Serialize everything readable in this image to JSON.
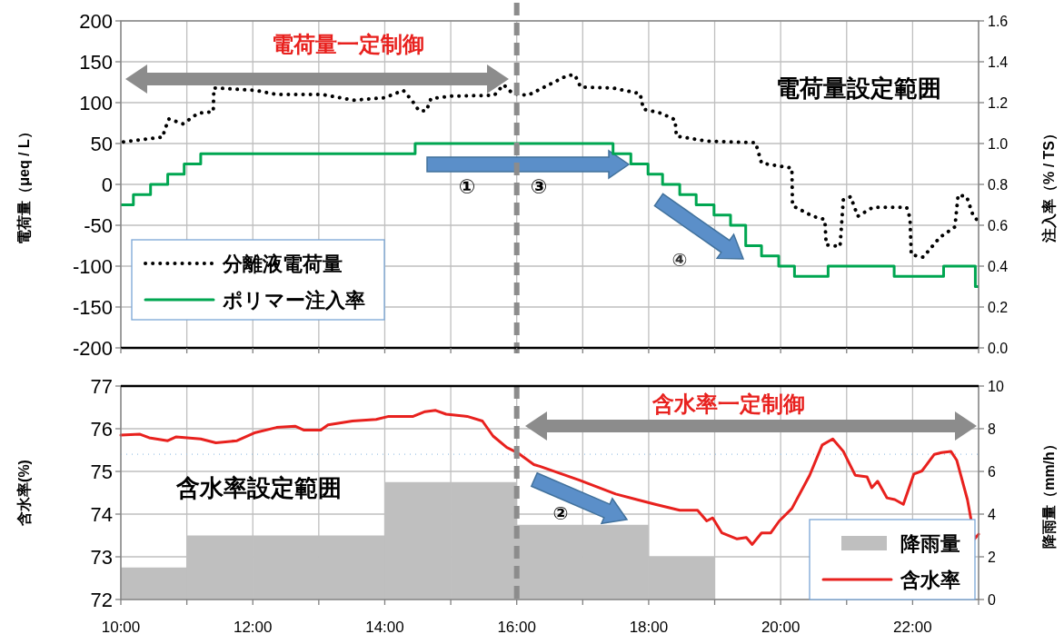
{
  "chart_data": [
    {
      "type": "line",
      "ylabel": "電荷量（μeq / L）",
      "y2label": "注入率（% / TS）",
      "xlim": [
        10,
        23
      ],
      "xticks": [
        {
          "value": 10,
          "label": null
        },
        {
          "value": 11,
          "label": null
        },
        {
          "value": 12,
          "label": null
        },
        {
          "value": 13,
          "label": null
        },
        {
          "value": 14,
          "label": null
        },
        {
          "value": 15,
          "label": null
        },
        {
          "value": 16,
          "label": null
        },
        {
          "value": 17,
          "label": null
        },
        {
          "value": 18,
          "label": null
        },
        {
          "value": 19,
          "label": null
        },
        {
          "value": 20,
          "label": null
        },
        {
          "value": 21,
          "label": null
        },
        {
          "value": 22,
          "label": null
        },
        {
          "value": 23,
          "label": null
        }
      ],
      "ylim": [
        -200,
        200
      ],
      "yticks": [
        -200,
        -150,
        -100,
        -50,
        0,
        50,
        100,
        150,
        200
      ],
      "y2lim": [
        0,
        1.6
      ],
      "y2ticks": [
        {
          "value": 0,
          "label": "0.0"
        },
        {
          "value": 0.2,
          "label": "0.2"
        },
        {
          "value": 0.4,
          "label": "0.4"
        },
        {
          "value": 0.6,
          "label": "0.6"
        },
        {
          "value": 0.8,
          "label": "0.8"
        },
        {
          "value": 1.0,
          "label": "1.0"
        },
        {
          "value": 1.2,
          "label": "1.2"
        },
        {
          "value": 1.4,
          "label": "1.4"
        },
        {
          "value": 1.6,
          "label": "1.6"
        }
      ],
      "grid": true,
      "legend": "bottom left",
      "tick_labels": "y",
      "series": [
        {
          "name": "分離液電荷量",
          "color": "#000000",
          "line_style": "dotted",
          "x": [
            10.04,
            10.64,
            10.66,
            10.73,
            10.94,
            11.17,
            11.4,
            11.41,
            12.04,
            12.36,
            13.05,
            13.53,
            14.0,
            14.28,
            14.41,
            14.52,
            14.63,
            14.7,
            15.02,
            15.66,
            15.8,
            15.94,
            16.17,
            16.49,
            16.76,
            16.88,
            16.97,
            17.45,
            17.87,
            17.92,
            18.19,
            18.4,
            18.42,
            18.88,
            19.62,
            19.71,
            20.17,
            20.18,
            20.49,
            20.67,
            20.69,
            20.9,
            20.95,
            21.06,
            21.17,
            21.4,
            21.91,
            21.96,
            21.98,
            22.16,
            22.41,
            22.64,
            22.69,
            22.82,
            22.92,
            23.0
          ],
          "values": [
            52,
            58,
            66,
            80,
            74,
            87,
            89,
            118,
            115,
            110,
            110,
            103,
            106,
            115,
            103,
            90,
            90,
            105,
            108,
            109,
            122,
            111,
            109,
            122,
            133,
            134,
            119,
            118,
            111,
            92,
            87,
            79,
            59,
            53,
            51,
            26,
            20,
            -26,
            -39,
            -43,
            -74,
            -76,
            -19,
            -15,
            -39,
            -28,
            -28,
            -41,
            -86,
            -89,
            -65,
            -52,
            -13,
            -15,
            -39,
            -45
          ]
        },
        {
          "name": "ポリマー注入率",
          "type": "step",
          "color": "#00a651",
          "axis": "y2",
          "x": [
            10,
            10.19,
            10.45,
            10.71,
            10.96,
            11.21,
            14.46,
            17.46,
            17.73,
            17.99,
            18.21,
            18.47,
            18.72,
            18.99,
            19.24,
            19.47,
            19.71,
            19.97,
            20.21,
            20.72,
            21.72,
            22.47,
            22.95,
            23
          ],
          "values": [
            0.7,
            0.75,
            0.8,
            0.85,
            0.9,
            0.95,
            1.0,
            0.95,
            0.9,
            0.85,
            0.8,
            0.75,
            0.7,
            0.65,
            0.6,
            0.5,
            0.45,
            0.4,
            0.35,
            0.4,
            0.35,
            0.4,
            0.3,
            0.3
          ]
        }
      ],
      "ref_lines": [
        {
          "axis": "x",
          "value": 16,
          "color": "#8c8c8c",
          "line_style": "dashed"
        }
      ],
      "annotations": [
        "電荷量一定制御",
        "電荷量設定範囲",
        "①",
        "③",
        "④"
      ]
    },
    {
      "type": "line",
      "ylabel": "含水率(%)",
      "y2label": "降雨量（mm/h）",
      "xlim": [
        10,
        23
      ],
      "xticks": [
        {
          "value": 10,
          "label": "10:00"
        },
        {
          "value": 11,
          "label": null
        },
        {
          "value": 12,
          "label": "12:00"
        },
        {
          "value": 13,
          "label": null
        },
        {
          "value": 14,
          "label": "14:00"
        },
        {
          "value": 15,
          "label": null
        },
        {
          "value": 16,
          "label": "16:00"
        },
        {
          "value": 17,
          "label": null
        },
        {
          "value": 18,
          "label": "18:00"
        },
        {
          "value": 19,
          "label": null
        },
        {
          "value": 20,
          "label": "20:00"
        },
        {
          "value": 21,
          "label": null
        },
        {
          "value": 22,
          "label": "22:00"
        },
        {
          "value": 23,
          "label": null
        }
      ],
      "ylim": [
        72,
        77
      ],
      "yticks": [
        72,
        73,
        74,
        75,
        76,
        77
      ],
      "y2lim": [
        0,
        10
      ],
      "y2ticks": [
        0,
        2,
        4,
        6,
        8,
        10
      ],
      "grid": true,
      "legend": "bottom right",
      "series": [
        {
          "name": "降雨量",
          "type": "bar",
          "color": "#bfbfbf",
          "axis": "y2",
          "x": [
            10.5,
            11.5,
            12.5,
            13.5,
            14.5,
            15.5,
            16.5,
            17.5,
            18.5,
            19.5,
            20.5,
            21.5,
            22.5
          ],
          "values": [
            1.5,
            3,
            3,
            3,
            5.5,
            5.5,
            3.5,
            3.5,
            2,
            0,
            0,
            0,
            0
          ]
        },
        {
          "name": "含水率",
          "color": "#e8211e",
          "x": [
            10.0,
            10.29,
            10.43,
            10.71,
            10.84,
            11.21,
            11.44,
            11.76,
            12.04,
            12.36,
            12.64,
            12.77,
            13.03,
            13.14,
            13.51,
            13.87,
            14.06,
            14.43,
            14.61,
            14.77,
            14.93,
            15.25,
            15.48,
            15.64,
            15.85,
            16.01,
            16.26,
            16.35,
            16.94,
            17.5,
            17.82,
            18.1,
            18.47,
            18.74,
            18.88,
            18.97,
            19.11,
            19.34,
            19.48,
            19.57,
            19.71,
            19.85,
            19.98,
            20.17,
            20.44,
            20.63,
            20.79,
            20.95,
            21.13,
            21.31,
            21.38,
            21.47,
            21.61,
            21.73,
            21.86,
            22.02,
            22.14,
            22.33,
            22.44,
            22.58,
            22.67,
            22.83,
            22.94,
            23.0
          ],
          "values": [
            75.85,
            75.87,
            75.79,
            75.72,
            75.81,
            75.76,
            75.67,
            75.72,
            75.91,
            76.03,
            76.06,
            75.97,
            75.97,
            76.09,
            76.18,
            76.22,
            76.29,
            76.29,
            76.4,
            76.43,
            76.34,
            76.29,
            76.18,
            75.83,
            75.56,
            75.44,
            75.16,
            75.12,
            74.8,
            74.47,
            74.34,
            74.23,
            74.09,
            74.09,
            73.84,
            73.91,
            73.56,
            73.42,
            73.45,
            73.29,
            73.56,
            73.56,
            73.84,
            74.13,
            74.91,
            75.62,
            75.76,
            75.47,
            74.91,
            74.87,
            74.62,
            74.77,
            74.38,
            74.34,
            74.23,
            74.94,
            75.01,
            75.4,
            75.44,
            75.47,
            75.26,
            74.34,
            73.42,
            73.53
          ]
        }
      ],
      "ref_lines": [
        {
          "axis": "x",
          "value": 16,
          "color": "#8c8c8c",
          "line_style": "dashed"
        },
        {
          "axis": "y",
          "value": 75.4,
          "color": "#9dc3e6",
          "line_style": "dotted"
        }
      ],
      "annotations": [
        "含水率一定制御",
        "含水率設定範囲",
        "②"
      ]
    }
  ]
}
